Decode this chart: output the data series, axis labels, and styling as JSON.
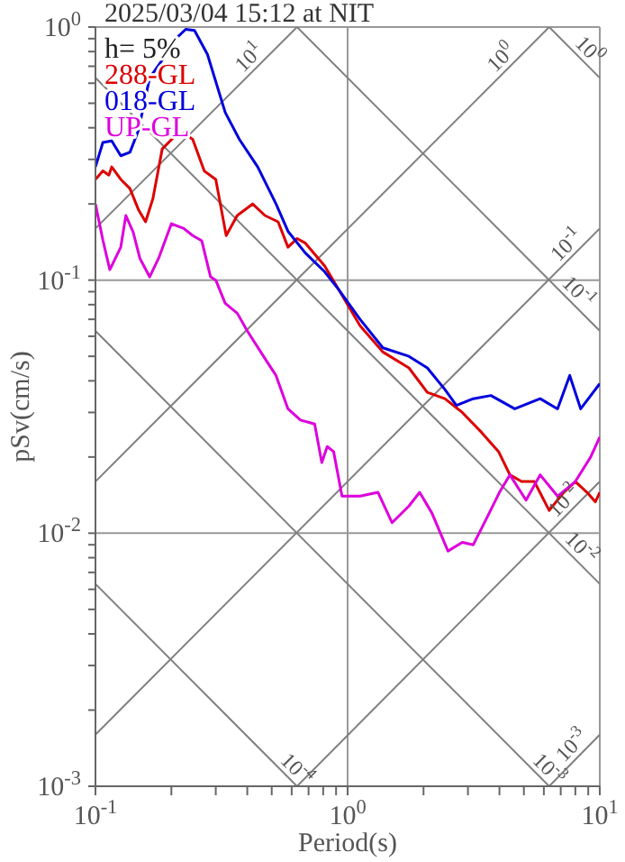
{
  "chart_data": {
    "type": "line",
    "title": "2025/03/04 15:12 at NIT",
    "xlabel": "Period(s)",
    "ylabel": "pSv(cm/s)",
    "log": "xy",
    "grid": true,
    "legend": "top left",
    "xlim": [
      0.1,
      10
    ],
    "ylim": [
      0.001,
      1
    ],
    "xticks": [
      {
        "value": 0.1,
        "label": "10$^{-1}$"
      },
      {
        "value": 0.2,
        "label": null
      },
      {
        "value": 0.3,
        "label": null
      },
      {
        "value": 0.4,
        "label": null
      },
      {
        "value": 0.5,
        "label": null
      },
      {
        "value": 0.6,
        "label": null
      },
      {
        "value": 0.7,
        "label": null
      },
      {
        "value": 0.8,
        "label": null
      },
      {
        "value": 0.9,
        "label": null
      },
      {
        "value": 1,
        "label": "10$^{0}$"
      },
      {
        "value": 2,
        "label": null
      },
      {
        "value": 3,
        "label": null
      },
      {
        "value": 4,
        "label": null
      },
      {
        "value": 5,
        "label": null
      },
      {
        "value": 6,
        "label": null
      },
      {
        "value": 7,
        "label": null
      },
      {
        "value": 8,
        "label": null
      },
      {
        "value": 9,
        "label": null
      },
      {
        "value": 10,
        "label": "10$^{1}$"
      }
    ],
    "yticks": [
      {
        "value": 0.001,
        "label": "10$^{-3}$"
      },
      {
        "value": 0.002,
        "label": null
      },
      {
        "value": 0.003,
        "label": null
      },
      {
        "value": 0.004,
        "label": null
      },
      {
        "value": 0.005,
        "label": null
      },
      {
        "value": 0.006,
        "label": null
      },
      {
        "value": 0.007,
        "label": null
      },
      {
        "value": 0.008,
        "label": null
      },
      {
        "value": 0.009,
        "label": null
      },
      {
        "value": 0.01,
        "label": "10$^{-2}$"
      },
      {
        "value": 0.02,
        "label": null
      },
      {
        "value": 0.03,
        "label": null
      },
      {
        "value": 0.04,
        "label": null
      },
      {
        "value": 0.05,
        "label": null
      },
      {
        "value": 0.06,
        "label": null
      },
      {
        "value": 0.07,
        "label": null
      },
      {
        "value": 0.08,
        "label": null
      },
      {
        "value": 0.09,
        "label": null
      },
      {
        "value": 0.1,
        "label": "10$^{-1}$"
      },
      {
        "value": 0.2,
        "label": null
      },
      {
        "value": 0.3,
        "label": null
      },
      {
        "value": 0.4,
        "label": null
      },
      {
        "value": 0.5,
        "label": null
      },
      {
        "value": 0.6,
        "label": null
      },
      {
        "value": 0.7,
        "label": null
      },
      {
        "value": 0.8,
        "label": null
      },
      {
        "value": 0.9,
        "label": null
      },
      {
        "value": 1,
        "label": "10$^{0}$"
      }
    ],
    "annotations": [
      "h= 5%",
      {
        "text": "10$^{1}$",
        "x": 0.44,
        "y": 0.7
      },
      {
        "text": "10$^{0}$",
        "x": 4.4,
        "y": 0.7
      },
      {
        "text": "10$^{0}$",
        "x": 8.4,
        "y": 0.75
      },
      {
        "text": "10$^{-1}$",
        "x": 8,
        "y": 0.127
      },
      {
        "text": "10$^{-1}$",
        "x": 7.6,
        "y": 0.083
      },
      {
        "text": "10$^{-2}$",
        "x": 7.8,
        "y": 0.0124
      },
      {
        "text": "10$^{-2}$",
        "x": 7.8,
        "y": 0.0081
      },
      {
        "text": "10$^{-4}$",
        "x": 0.58,
        "y": 0.00108
      },
      {
        "text": "10$^{-3}$",
        "x": 5.8,
        "y": 0.00108
      },
      {
        "text": "10$^{-3}$",
        "x": 8.4,
        "y": 0.00134
      }
    ],
    "series": [
      {
        "type": "line",
        "color": "#808080",
        "x": [
          0.1,
          0.63
        ],
        "values": [
          0.0063,
          0.001
        ]
      },
      {
        "type": "line",
        "color": "#808080",
        "x": [
          0.1,
          6.3
        ],
        "values": [
          0.063,
          0.001
        ]
      },
      {
        "type": "line",
        "color": "#808080",
        "x": [
          0.1,
          10
        ],
        "values": [
          0.63,
          0.0063
        ]
      },
      {
        "type": "line",
        "color": "#808080",
        "x": [
          0.63,
          10
        ],
        "values": [
          1,
          0.063
        ]
      },
      {
        "type": "line",
        "color": "#808080",
        "x": [
          6.3,
          10
        ],
        "values": [
          1,
          0.63
        ]
      },
      {
        "type": "line",
        "color": "#808080",
        "x": [
          6.3,
          10
        ],
        "values": [
          0.001,
          0.0016
        ]
      },
      {
        "type": "line",
        "color": "#808080",
        "x": [
          0.63,
          10
        ],
        "values": [
          0.001,
          0.016
        ]
      },
      {
        "type": "line",
        "color": "#808080",
        "x": [
          0.1,
          10
        ],
        "values": [
          0.0016,
          0.16
        ]
      },
      {
        "type": "line",
        "color": "#808080",
        "x": [
          0.1,
          6.3
        ],
        "values": [
          0.016,
          1
        ]
      },
      {
        "type": "line",
        "color": "#808080",
        "x": [
          0.1,
          0.63
        ],
        "values": [
          0.16,
          1
        ]
      },
      {
        "name": "288-GL",
        "color": "#dd0000",
        "x": [
          0.1,
          0.107,
          0.113,
          0.116,
          0.126,
          0.137,
          0.148,
          0.158,
          0.169,
          0.184,
          0.206,
          0.224,
          0.243,
          0.27,
          0.3,
          0.33,
          0.365,
          0.42,
          0.47,
          0.53,
          0.58,
          0.63,
          0.68,
          0.81,
          0.92,
          1.12,
          1.38,
          1.75,
          2.07,
          2.43,
          2.85,
          3.4,
          3.97,
          4.4,
          4.9,
          5.5,
          6.3,
          7.2,
          8,
          8.9,
          9.6,
          10
        ],
        "values": [
          0.25,
          0.27,
          0.26,
          0.28,
          0.25,
          0.23,
          0.19,
          0.17,
          0.21,
          0.33,
          0.37,
          0.38,
          0.36,
          0.27,
          0.25,
          0.15,
          0.18,
          0.2,
          0.18,
          0.17,
          0.135,
          0.146,
          0.14,
          0.114,
          0.092,
          0.066,
          0.052,
          0.045,
          0.036,
          0.034,
          0.03,
          0.025,
          0.021,
          0.017,
          0.016,
          0.016,
          0.0123,
          0.0145,
          0.016,
          0.0145,
          0.0133,
          0.0145
        ]
      },
      {
        "name": "018-GL",
        "color": "#0000dd",
        "x": [
          0.1,
          0.107,
          0.116,
          0.126,
          0.137,
          0.148,
          0.164,
          0.184,
          0.206,
          0.228,
          0.247,
          0.278,
          0.327,
          0.372,
          0.44,
          0.52,
          0.58,
          0.68,
          0.81,
          0.92,
          1.12,
          1.38,
          1.75,
          2.07,
          2.43,
          2.7,
          3.15,
          3.7,
          4.6,
          5.8,
          6.8,
          7.6,
          8.4,
          10
        ],
        "values": [
          0.28,
          0.35,
          0.355,
          0.31,
          0.32,
          0.39,
          0.63,
          0.74,
          0.89,
          0.98,
          0.97,
          0.78,
          0.46,
          0.36,
          0.28,
          0.2,
          0.156,
          0.128,
          0.108,
          0.092,
          0.07,
          0.054,
          0.05,
          0.045,
          0.037,
          0.032,
          0.034,
          0.035,
          0.031,
          0.034,
          0.031,
          0.042,
          0.031,
          0.039
        ]
      },
      {
        "name": "UP-GL",
        "color": "#dd00dd",
        "x": [
          0.1,
          0.107,
          0.114,
          0.126,
          0.132,
          0.141,
          0.15,
          0.164,
          0.178,
          0.2,
          0.224,
          0.243,
          0.264,
          0.286,
          0.3,
          0.327,
          0.365,
          0.4,
          0.47,
          0.52,
          0.58,
          0.65,
          0.74,
          0.79,
          0.83,
          0.88,
          0.95,
          1.12,
          1.32,
          1.5,
          1.75,
          1.93,
          2.16,
          2.5,
          2.85,
          3.15,
          3.55,
          4,
          4.4,
          5.1,
          5.8,
          6.8,
          8,
          9.2,
          10
        ],
        "values": [
          0.2,
          0.144,
          0.11,
          0.135,
          0.18,
          0.155,
          0.122,
          0.103,
          0.122,
          0.167,
          0.16,
          0.15,
          0.143,
          0.103,
          0.1,
          0.081,
          0.074,
          0.063,
          0.049,
          0.042,
          0.031,
          0.028,
          0.027,
          0.019,
          0.022,
          0.021,
          0.014,
          0.014,
          0.0145,
          0.011,
          0.0128,
          0.0145,
          0.012,
          0.0085,
          0.0092,
          0.009,
          0.0114,
          0.0145,
          0.017,
          0.0135,
          0.017,
          0.014,
          0.016,
          0.02,
          0.024
        ]
      }
    ]
  }
}
